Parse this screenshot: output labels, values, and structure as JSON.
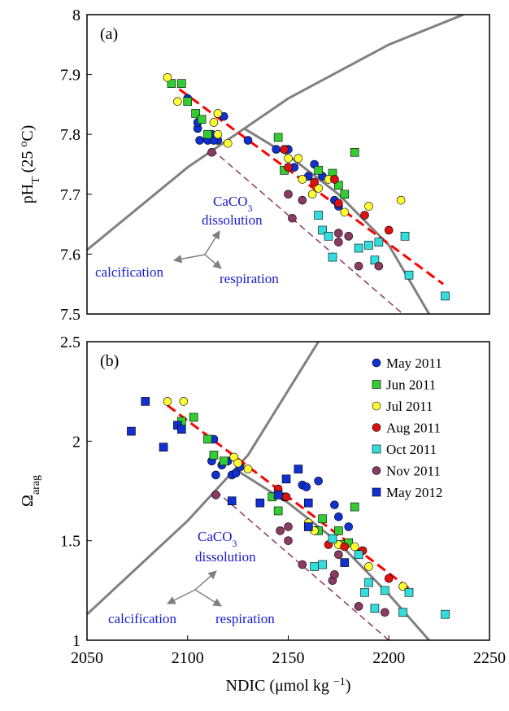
{
  "chart_data": [
    {
      "type": "scatter",
      "panel_label": "(a)",
      "ylabel": [
        "pH",
        "T",
        " (25 ",
        "o",
        "C)"
      ],
      "xlim": [
        2050,
        2250
      ],
      "ylim": [
        7.5,
        8
      ],
      "yticks": [
        7.5,
        7.6,
        7.7,
        7.8,
        7.9,
        8
      ],
      "grid": false,
      "legend": false,
      "annotations": [
        [
          "CaCO",
          "3"
        ],
        [
          "dissolution"
        ],
        [
          "calcification"
        ],
        [
          "respiration"
        ]
      ],
      "reference_lines": [
        {
          "color": "#808080",
          "dash": false,
          "x": [
            2050,
            2100,
            2150,
            2200,
            2237
          ],
          "values": [
            7.607,
            7.745,
            7.86,
            7.95,
            8
          ]
        },
        {
          "color": "#808080",
          "dash": false,
          "x": [
            2128,
            2150,
            2175,
            2200,
            2220
          ],
          "values": [
            7.81,
            7.765,
            7.7,
            7.615,
            7.5
          ]
        },
        {
          "color": "#ff0000",
          "dash": true,
          "x": [
            2090,
            2227
          ],
          "values": [
            7.89,
            7.55
          ]
        },
        {
          "color": "#8b3a62",
          "dash": true,
          "x": [
            2112,
            2207
          ],
          "values": [
            7.775,
            7.5
          ]
        }
      ],
      "series": [
        {
          "color": "#1030d0",
          "marker": "circle",
          "x": [
            2100,
            2105,
            2106,
            2110,
            2112,
            2115,
            2118,
            2130,
            2144,
            2150,
            2153,
            2160,
            2163,
            2167,
            2173,
            2175,
            2105,
            2113
          ],
          "values": [
            7.86,
            7.81,
            7.79,
            7.79,
            7.8,
            7.79,
            7.83,
            7.79,
            7.775,
            7.775,
            7.745,
            7.73,
            7.75,
            7.73,
            7.69,
            7.68,
            7.82,
            7.79
          ]
        },
        {
          "color": "#33cc33",
          "marker": "square",
          "x": [
            2092,
            2097,
            2100,
            2104,
            2107,
            2110,
            2145,
            2148,
            2165,
            2172,
            2175,
            2178,
            2183
          ],
          "values": [
            7.885,
            7.885,
            7.855,
            7.835,
            7.825,
            7.8,
            7.795,
            7.74,
            7.74,
            7.735,
            7.715,
            7.7,
            7.77
          ]
        },
        {
          "color": "#ffff33",
          "marker": "circle",
          "x": [
            2090,
            2095,
            2113,
            2115,
            2115,
            2120,
            2150,
            2155,
            2157,
            2162,
            2165,
            2170,
            2178,
            2190,
            2206
          ],
          "values": [
            7.895,
            7.855,
            7.82,
            7.835,
            7.8,
            7.785,
            7.76,
            7.76,
            7.725,
            7.7,
            7.71,
            7.725,
            7.67,
            7.68,
            7.69
          ]
        },
        {
          "color": "#dd1111",
          "marker": "circle",
          "x": [
            2148,
            2150,
            2163,
            2173,
            2188,
            2200,
            2175
          ],
          "values": [
            7.775,
            7.745,
            7.72,
            7.725,
            7.665,
            7.64,
            7.685
          ]
        },
        {
          "color": "#33dddd",
          "marker": "square",
          "x": [
            2165,
            2167,
            2170,
            2172,
            2185,
            2190,
            2193,
            2195,
            2208,
            2210,
            2228
          ],
          "values": [
            7.665,
            7.64,
            7.63,
            7.595,
            7.61,
            7.615,
            7.59,
            7.62,
            7.63,
            7.565,
            7.53
          ]
        },
        {
          "color": "#8b3a62",
          "marker": "circle",
          "x": [
            2112,
            2150,
            2152,
            2157,
            2175,
            2175,
            2180,
            2185,
            2195
          ],
          "values": [
            7.77,
            7.7,
            7.66,
            7.69,
            7.635,
            7.62,
            7.63,
            7.58,
            7.58
          ]
        }
      ]
    },
    {
      "type": "scatter",
      "panel_label": "(b)",
      "ylabel": [
        "Ω",
        "arag"
      ],
      "xlabel": [
        "NDIC (μmol kg ",
        "−1",
        ")"
      ],
      "xlim": [
        2050,
        2250
      ],
      "ylim": [
        1,
        2.5
      ],
      "xticks": [
        2050,
        2100,
        2150,
        2200,
        2250
      ],
      "yticks": [
        1,
        1.5,
        2,
        2.5
      ],
      "grid": false,
      "legend": "upper right",
      "annotations": [
        [
          "CaCO",
          "3"
        ],
        [
          "dissolution"
        ],
        [
          "calcification"
        ],
        [
          "respiration"
        ]
      ],
      "reference_lines": [
        {
          "color": "#808080",
          "dash": false,
          "x": [
            2050,
            2100,
            2130,
            2165
          ],
          "values": [
            1.13,
            1.6,
            1.93,
            2.5
          ]
        },
        {
          "color": "#808080",
          "dash": false,
          "x": [
            2125,
            2150,
            2175,
            2200,
            2220
          ],
          "values": [
            1.85,
            1.69,
            1.49,
            1.23,
            1
          ]
        },
        {
          "color": "#ff0000",
          "dash": true,
          "x": [
            2090,
            2210
          ],
          "values": [
            2.18,
            1.26
          ]
        },
        {
          "color": "#8b3a62",
          "dash": true,
          "x": [
            2114,
            2200
          ],
          "values": [
            1.75,
            1
          ]
        }
      ],
      "series": [
        {
          "name": "May 2011",
          "color": "#1030d0",
          "marker": "circle",
          "x": [
            2113,
            2112,
            2114,
            2120,
            2122,
            2124,
            2126,
            2145,
            2148,
            2157,
            2159,
            2165,
            2173,
            2175,
            2180,
            2117
          ],
          "values": [
            2.01,
            1.9,
            1.83,
            1.9,
            1.83,
            1.84,
            1.87,
            1.73,
            1.72,
            1.78,
            1.77,
            1.8,
            1.68,
            1.62,
            1.57,
            1.88
          ]
        },
        {
          "name": "Jun 2011",
          "color": "#33cc33",
          "marker": "square",
          "x": [
            2097,
            2103,
            2110,
            2113,
            2118,
            2142,
            2145,
            2165,
            2167,
            2175,
            2177,
            2180,
            2183
          ],
          "values": [
            2.1,
            2.12,
            2.01,
            1.93,
            1.9,
            1.72,
            1.65,
            1.55,
            1.61,
            1.55,
            1.48,
            1.49,
            1.67
          ]
        },
        {
          "name": "Jul 2011",
          "color": "#ffff33",
          "marker": "circle",
          "x": [
            2090,
            2098,
            2123,
            2125,
            2130,
            2160,
            2163,
            2175,
            2183,
            2190,
            2207
          ],
          "values": [
            2.2,
            2.2,
            1.92,
            1.89,
            1.86,
            1.59,
            1.55,
            1.48,
            1.47,
            1.37,
            1.27
          ]
        },
        {
          "name": "Aug 2011",
          "color": "#dd1111",
          "marker": "circle",
          "x": [
            2145,
            2149,
            2170,
            2178,
            2187,
            2200
          ],
          "values": [
            1.76,
            1.72,
            1.48,
            1.47,
            1.45,
            1.31
          ]
        },
        {
          "name": "Oct 2011",
          "color": "#33dddd",
          "marker": "square",
          "x": [
            2163,
            2167,
            2172,
            2185,
            2188,
            2190,
            2193,
            2198,
            2207,
            2210,
            2228
          ],
          "values": [
            1.37,
            1.38,
            1.51,
            1.43,
            1.24,
            1.29,
            1.16,
            1.25,
            1.14,
            1.24,
            1.13
          ]
        },
        {
          "name": "Nov 2011",
          "color": "#8b3a62",
          "marker": "circle",
          "x": [
            2114,
            2146,
            2150,
            2157,
            2150,
            2172,
            2173,
            2185,
            2198,
            2175
          ],
          "values": [
            1.73,
            1.55,
            1.57,
            1.38,
            1.5,
            1.3,
            1.33,
            1.17,
            1.14,
            1.43
          ]
        },
        {
          "name": "May 2012",
          "color": "#1030d0",
          "marker": "square",
          "x": [
            2072,
            2079,
            2088,
            2095,
            2097,
            2122,
            2136,
            2145,
            2149,
            2155,
            2160,
            2160,
            2178
          ],
          "values": [
            2.05,
            2.2,
            1.97,
            2.08,
            2.06,
            1.7,
            1.69,
            1.73,
            1.81,
            1.86,
            1.69,
            1.57,
            1.39
          ]
        }
      ]
    }
  ]
}
